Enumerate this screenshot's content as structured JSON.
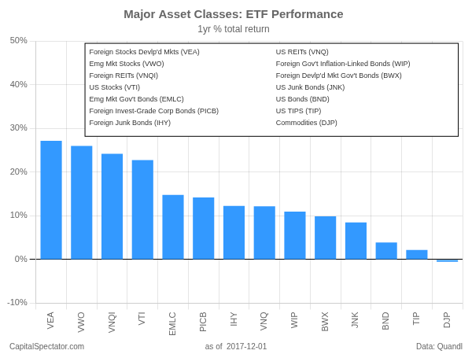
{
  "chart_data": {
    "type": "bar",
    "title": "Major Asset Classes: ETF Performance",
    "subtitle": "1yr % total return",
    "categories": [
      "VEA",
      "VWO",
      "VNQI",
      "VTI",
      "EMLC",
      "PICB",
      "IHY",
      "VNQ",
      "WIP",
      "BWX",
      "JNK",
      "BND",
      "TIP",
      "DJP"
    ],
    "values": [
      27.2,
      26.0,
      24.2,
      22.8,
      14.8,
      14.2,
      12.3,
      12.2,
      11.0,
      9.9,
      8.5,
      3.9,
      2.2,
      -0.5
    ],
    "color": "#3399FF",
    "ylim": [
      -10,
      50
    ],
    "yticks": [
      {
        "value": -10,
        "label": "-10%"
      },
      {
        "value": 0,
        "label": "0%"
      },
      {
        "value": 10,
        "label": "10%"
      },
      {
        "value": 20,
        "label": "20%"
      },
      {
        "value": 30,
        "label": "30%"
      },
      {
        "value": 40,
        "label": "40%"
      },
      {
        "value": 50,
        "label": "50%"
      }
    ],
    "grid": true,
    "annotations": [
      "Foreign Stocks Devlp'd Mkts (VEA)",
      "Emg Mkt Stocks (VWO)",
      "Foreign REITs (VNQI)",
      "US Stocks (VTI)",
      "Emg Mkt Gov't Bonds (EMLC)",
      "Foreign Invest-Grade Corp Bonds (PICB)",
      "Foreign Junk Bonds (IHY)",
      "US REITs (VNQ)",
      "Foreign Gov't Inflation-Linked Bonds (WIP)",
      "Foreign Devlp'd Mkt Gov't Bonds (BWX)",
      "US Junk Bonds (JNK)",
      "US Bonds (BND)",
      "US TIPS (TIP)",
      "Commodities (DJP)"
    ],
    "footer": [
      "CapitalSpectator.com",
      "as of  2017-12-01",
      "Data: Quandl"
    ]
  }
}
